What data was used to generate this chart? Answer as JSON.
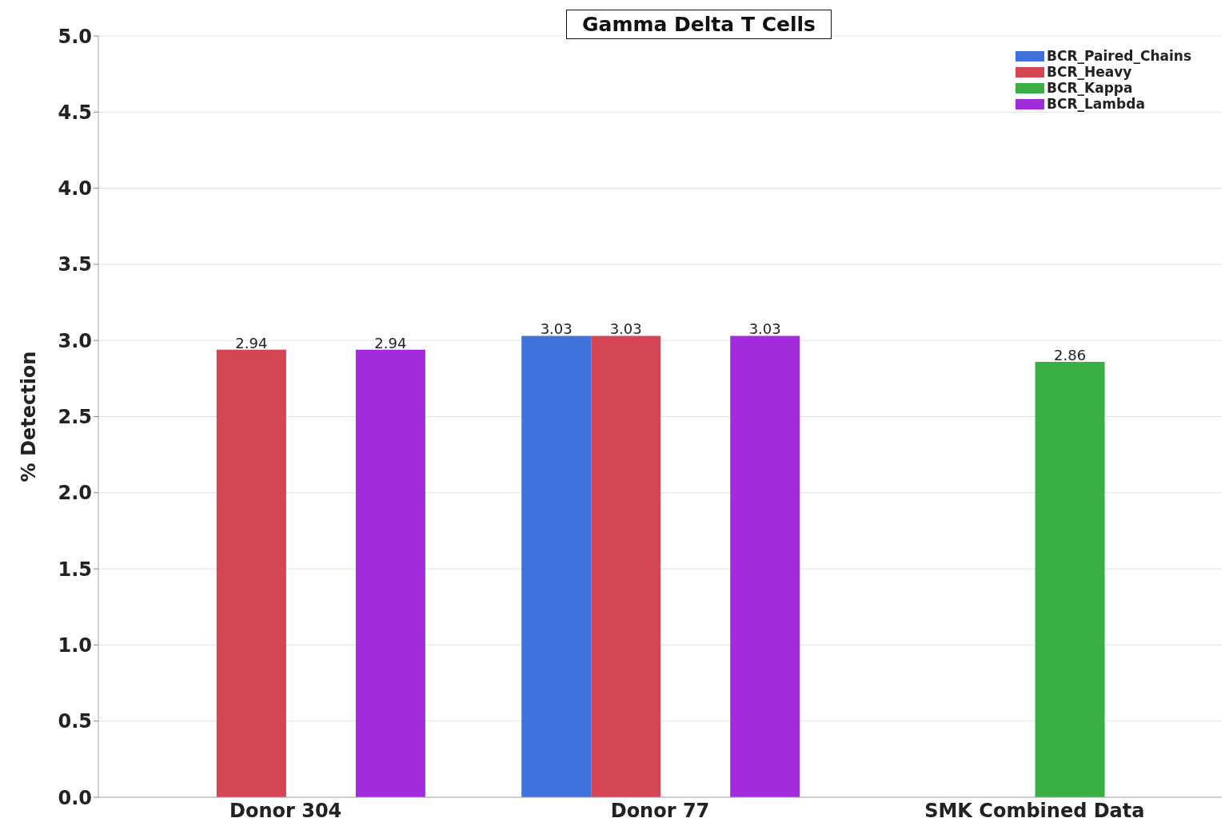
{
  "chart_data": {
    "type": "bar",
    "title": "Gamma Delta T Cells",
    "ylabel": "% Detection",
    "categories": [
      "Donor 304",
      "Donor 77",
      "SMK  Combined Data"
    ],
    "series": [
      {
        "name": "BCR_Paired_Chains",
        "color": "#4171db",
        "values": [
          null,
          3.03,
          null
        ]
      },
      {
        "name": "BCR_Heavy",
        "color": "#d44654",
        "values": [
          2.94,
          3.03,
          null
        ]
      },
      {
        "name": "BCR_Kappa",
        "color": "#3aaf44",
        "values": [
          null,
          null,
          2.86
        ]
      },
      {
        "name": "BCR_Lambda",
        "color": "#a22bdb",
        "values": [
          2.94,
          3.03,
          null
        ]
      }
    ],
    "ylim": [
      0,
      5
    ],
    "yticks": [
      {
        "value": 0,
        "label": "0.0"
      },
      {
        "value": 0.5,
        "label": "0.5"
      },
      {
        "value": 1,
        "label": "1.0"
      },
      {
        "value": 1.5,
        "label": "1.5"
      },
      {
        "value": 2,
        "label": "2.0"
      },
      {
        "value": 2.5,
        "label": "2.5"
      },
      {
        "value": 3,
        "label": "3.0"
      },
      {
        "value": 3.5,
        "label": "3.5"
      },
      {
        "value": 4,
        "label": "4.0"
      },
      {
        "value": 4.5,
        "label": "4.5"
      },
      {
        "value": 5,
        "label": "5.0"
      }
    ],
    "grid": "y",
    "legend": "top right",
    "data_labels": true
  }
}
